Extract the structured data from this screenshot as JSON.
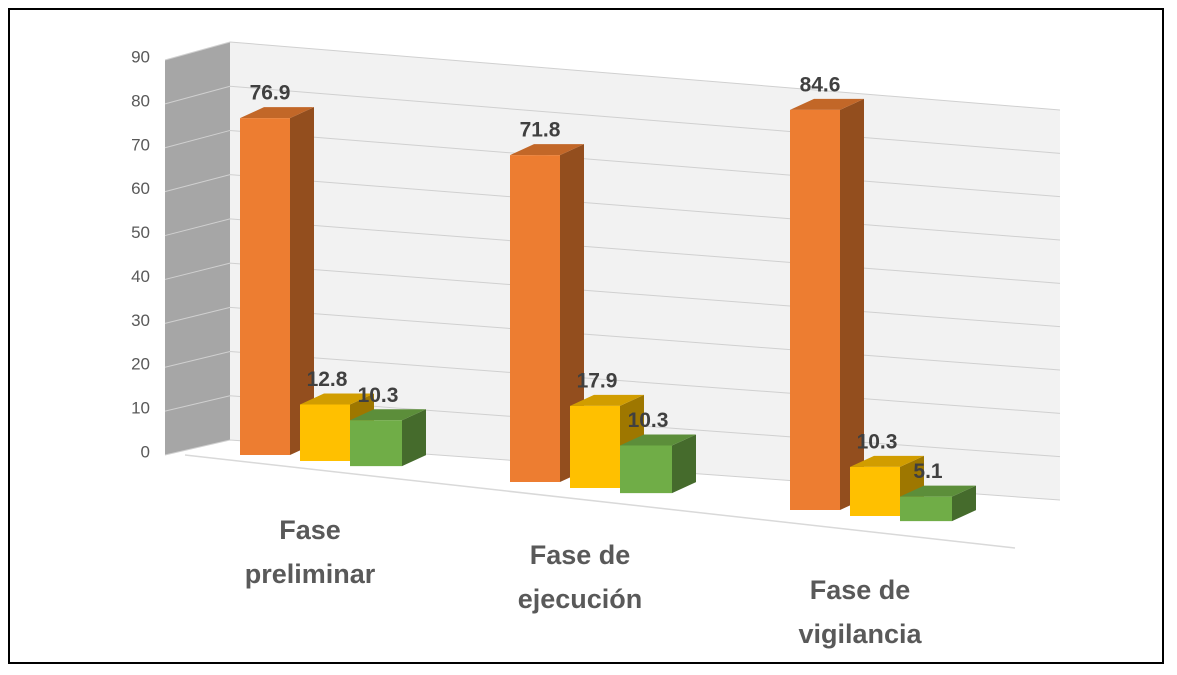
{
  "chart_data": {
    "type": "bar3d",
    "categories": [
      "Fase preliminar",
      "Fase de ejecución",
      "Fase de vigilancia"
    ],
    "series": [
      {
        "color": "#ed7d31",
        "values": [
          76.9,
          71.8,
          84.6
        ]
      },
      {
        "color": "#ffc000",
        "values": [
          12.8,
          17.9,
          10.3
        ]
      },
      {
        "color": "#70ad47",
        "values": [
          10.3,
          10.3,
          5.1
        ]
      }
    ],
    "ylim": [
      0,
      90
    ],
    "yticks": [
      0,
      10,
      20,
      30,
      40,
      50,
      60,
      70,
      80,
      90
    ],
    "grid": true
  }
}
